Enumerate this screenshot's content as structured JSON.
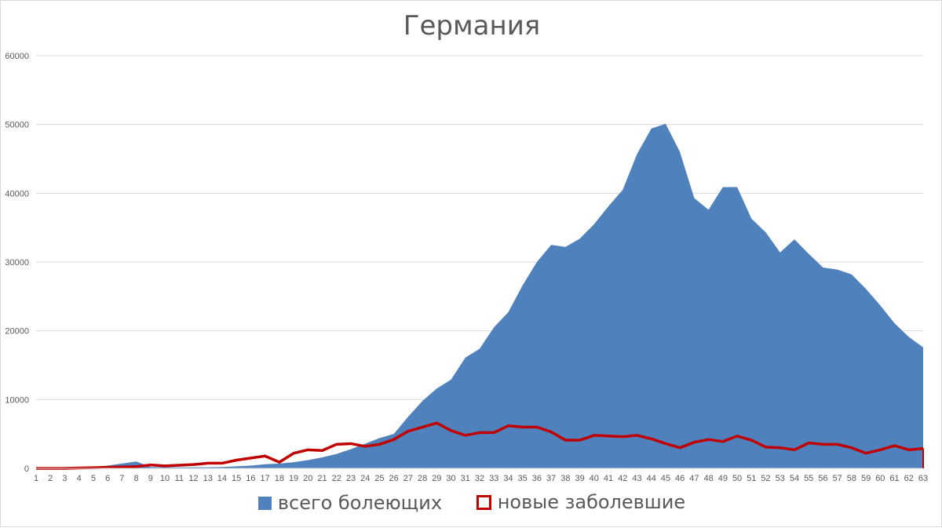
{
  "chart_data": {
    "type": "area",
    "title": "Германия",
    "xlabel": "",
    "ylabel": "",
    "x": [
      1,
      2,
      3,
      4,
      5,
      6,
      7,
      8,
      9,
      10,
      11,
      12,
      13,
      14,
      15,
      16,
      17,
      18,
      19,
      20,
      21,
      22,
      23,
      24,
      25,
      26,
      27,
      28,
      29,
      30,
      31,
      32,
      33,
      34,
      35,
      36,
      37,
      38,
      39,
      40,
      41,
      42,
      43,
      44,
      45,
      46,
      47,
      48,
      49,
      50,
      51,
      52,
      53,
      54,
      55,
      56,
      57,
      58,
      59,
      60,
      61,
      62,
      63
    ],
    "ylim": [
      0,
      60000
    ],
    "yticks": [
      0,
      10000,
      20000,
      30000,
      40000,
      50000,
      60000
    ],
    "grid": true,
    "legend_position": "bottom",
    "series": [
      {
        "name": "всего болеющих",
        "kind": "area",
        "color": "#4f81bd",
        "values": [
          0,
          0,
          0,
          100,
          200,
          400,
          700,
          1000,
          200,
          150,
          150,
          150,
          150,
          200,
          300,
          400,
          600,
          700,
          900,
          1200,
          1600,
          2100,
          2800,
          3600,
          4400,
          5000,
          7500,
          9800,
          11600,
          12900,
          16100,
          17400,
          20500,
          22700,
          26600,
          30000,
          32500,
          32200,
          33400,
          35500,
          38100,
          40500,
          45700,
          49400,
          50100,
          46000,
          39300,
          37600,
          40900,
          40900,
          36300,
          34300,
          31400,
          33300,
          31200,
          29200,
          28900,
          28200,
          26100,
          23700,
          21100,
          19100,
          17600
        ]
      },
      {
        "name": "новые заболевшие",
        "kind": "line",
        "color": "#c00000",
        "values": [
          0,
          0,
          0,
          50,
          100,
          150,
          200,
          250,
          500,
          350,
          450,
          550,
          750,
          750,
          1200,
          1500,
          1800,
          900,
          2200,
          2700,
          2600,
          3500,
          3600,
          3200,
          3500,
          4200,
          5400,
          6000,
          6600,
          5500,
          4800,
          5200,
          5200,
          6200,
          6000,
          6000,
          5300,
          4100,
          4100,
          4800,
          4700,
          4600,
          4800,
          4300,
          3600,
          3000,
          3800,
          4200,
          3900,
          4700,
          4100,
          3100,
          3000,
          2700,
          3700,
          3500,
          3500,
          3000,
          2200,
          2700,
          3300,
          2700,
          2900
        ]
      }
    ]
  }
}
